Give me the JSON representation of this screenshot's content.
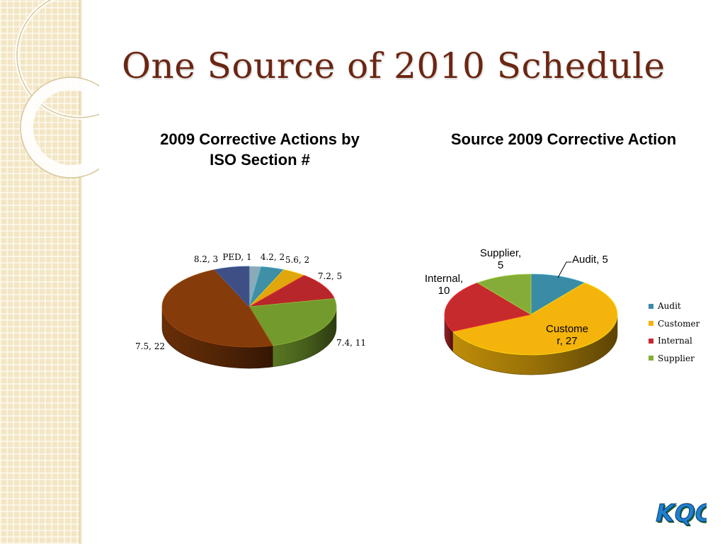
{
  "slide": {
    "title": "One Source of 2010 Schedule",
    "logo_text": "KQC"
  },
  "chart_data": [
    {
      "type": "pie",
      "title": "2009 Corrective Actions by ISO Section #",
      "categories": [
        "PED",
        "4.2",
        "5.6",
        "7.2",
        "7.4",
        "7.5",
        "8.2"
      ],
      "values": [
        1,
        2,
        2,
        5,
        11,
        22,
        3
      ],
      "data_labels": [
        "PED, 1",
        "4.2, 2",
        "5.6, 2",
        "7.2, 5",
        "7.4, 11",
        "7.5, 22",
        "8.2, 3"
      ],
      "colors": [
        "#8aaab8",
        "#3f8fa6",
        "#e0a60c",
        "#b7262b",
        "#739a2c",
        "#853b0a",
        "#3d4f85"
      ],
      "legend": "none"
    },
    {
      "type": "pie",
      "title": "Source 2009 Corrective Action",
      "categories": [
        "Audit",
        "Customer",
        "Internal",
        "Supplier"
      ],
      "values": [
        5,
        27,
        10,
        5
      ],
      "data_labels": [
        "Audit, 5",
        "Customer, 27",
        "Internal, 10",
        "Supplier, 5"
      ],
      "colors": [
        "#3a8ca6",
        "#f4b40c",
        "#c62a2d",
        "#85ac38"
      ],
      "legend": "right"
    }
  ]
}
